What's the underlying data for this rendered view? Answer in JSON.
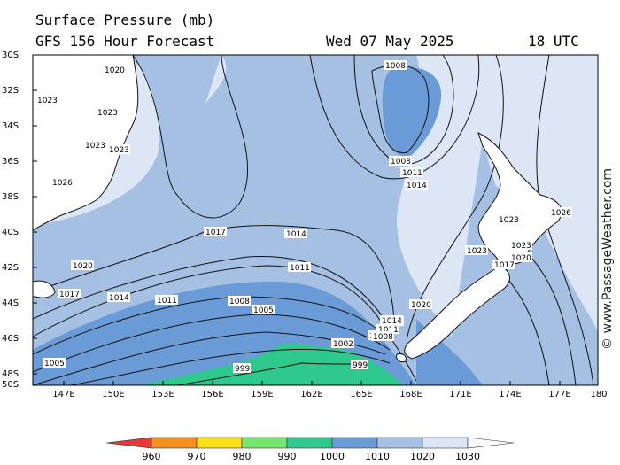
{
  "header": {
    "title": "Surface Pressure (mb)",
    "subtitle": "GFS 156 Hour Forecast",
    "date": "Wed 07 May 2025",
    "time": "18 UTC"
  },
  "latitude_labels": [
    "30S",
    "32S",
    "34S",
    "36S",
    "38S",
    "40S",
    "42S",
    "44S",
    "46S",
    "48S",
    "50S"
  ],
  "longitude_labels": [
    "147E",
    "150E",
    "153E",
    "156E",
    "159E",
    "162E",
    "165E",
    "168E",
    "171E",
    "174E",
    "177E",
    "180"
  ],
  "legend": {
    "ticks": [
      "960",
      "970",
      "980",
      "990",
      "1000",
      "1010",
      "1020",
      "1030"
    ],
    "colors": [
      "#e8383b",
      "#f5901e",
      "#f7e01a",
      "#78e66e",
      "#2fc98e",
      "#6a9bd6",
      "#a6c0e3",
      "#dce6f4",
      "#f7f9fd"
    ]
  },
  "isobar_labels": [
    {
      "text": "1020",
      "lon": "west",
      "id": "a"
    },
    {
      "text": "1023",
      "id": "b"
    },
    {
      "text": "1023",
      "id": "c"
    },
    {
      "text": "1023",
      "id": "d"
    },
    {
      "text": "1023",
      "id": "e"
    },
    {
      "text": "1026",
      "id": "f"
    },
    {
      "text": "1020",
      "id": "g"
    },
    {
      "text": "1017",
      "id": "h"
    },
    {
      "text": "1014",
      "id": "i"
    },
    {
      "text": "1011",
      "id": "j"
    },
    {
      "text": "1008",
      "id": "k"
    },
    {
      "text": "1005",
      "id": "l"
    },
    {
      "text": "1005",
      "id": "m"
    },
    {
      "text": "1017",
      "id": "n"
    },
    {
      "text": "1014",
      "id": "o"
    },
    {
      "text": "1011",
      "id": "p"
    },
    {
      "text": "1008",
      "id": "q"
    },
    {
      "text": "1005",
      "id": "r"
    },
    {
      "text": "1002",
      "id": "s"
    },
    {
      "text": "999",
      "id": "t"
    },
    {
      "text": "999",
      "id": "u"
    },
    {
      "text": "1008",
      "id": "v"
    },
    {
      "text": "1008",
      "id": "w"
    },
    {
      "text": "1011",
      "id": "x"
    },
    {
      "text": "1014",
      "id": "y"
    },
    {
      "text": "1014",
      "id": "z"
    },
    {
      "text": "1011",
      "id": "aa"
    },
    {
      "text": "1008",
      "id": "ab"
    },
    {
      "text": "1020",
      "id": "ac"
    },
    {
      "text": "1023",
      "id": "ad"
    },
    {
      "text": "1026",
      "id": "ae"
    },
    {
      "text": "1023",
      "id": "af"
    },
    {
      "text": "1023",
      "id": "ag"
    },
    {
      "text": "1020",
      "id": "ah"
    },
    {
      "text": "1017",
      "id": "ai"
    }
  ],
  "credit": "© www.PassageWeather.com"
}
